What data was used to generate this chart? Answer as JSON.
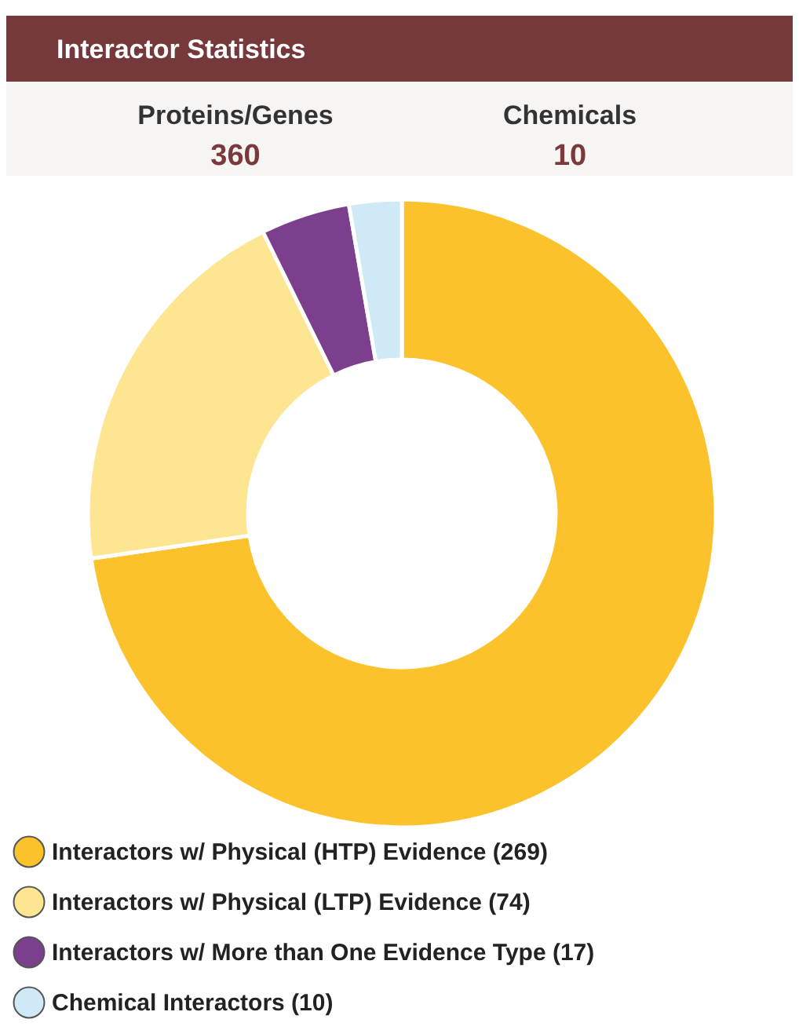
{
  "chart_data": {
    "type": "donut",
    "title": "Interactor Statistics",
    "annotations": [
      "Proteins/Genes",
      "360",
      "Chemicals",
      "10"
    ],
    "categories": [
      "Interactors w/ Physical (HTP) Evidence (269)",
      "Interactors w/ Physical (LTP) Evidence (74)",
      "Interactors w/ More than One Evidence Type (17)",
      "Chemical Interactors (10)"
    ],
    "values": [
      269,
      74,
      17,
      10
    ],
    "colors": [
      "#fcc22c",
      "#fde592",
      "#7b3f8e",
      "#cfe9f7"
    ],
    "legend": "bottom"
  }
}
